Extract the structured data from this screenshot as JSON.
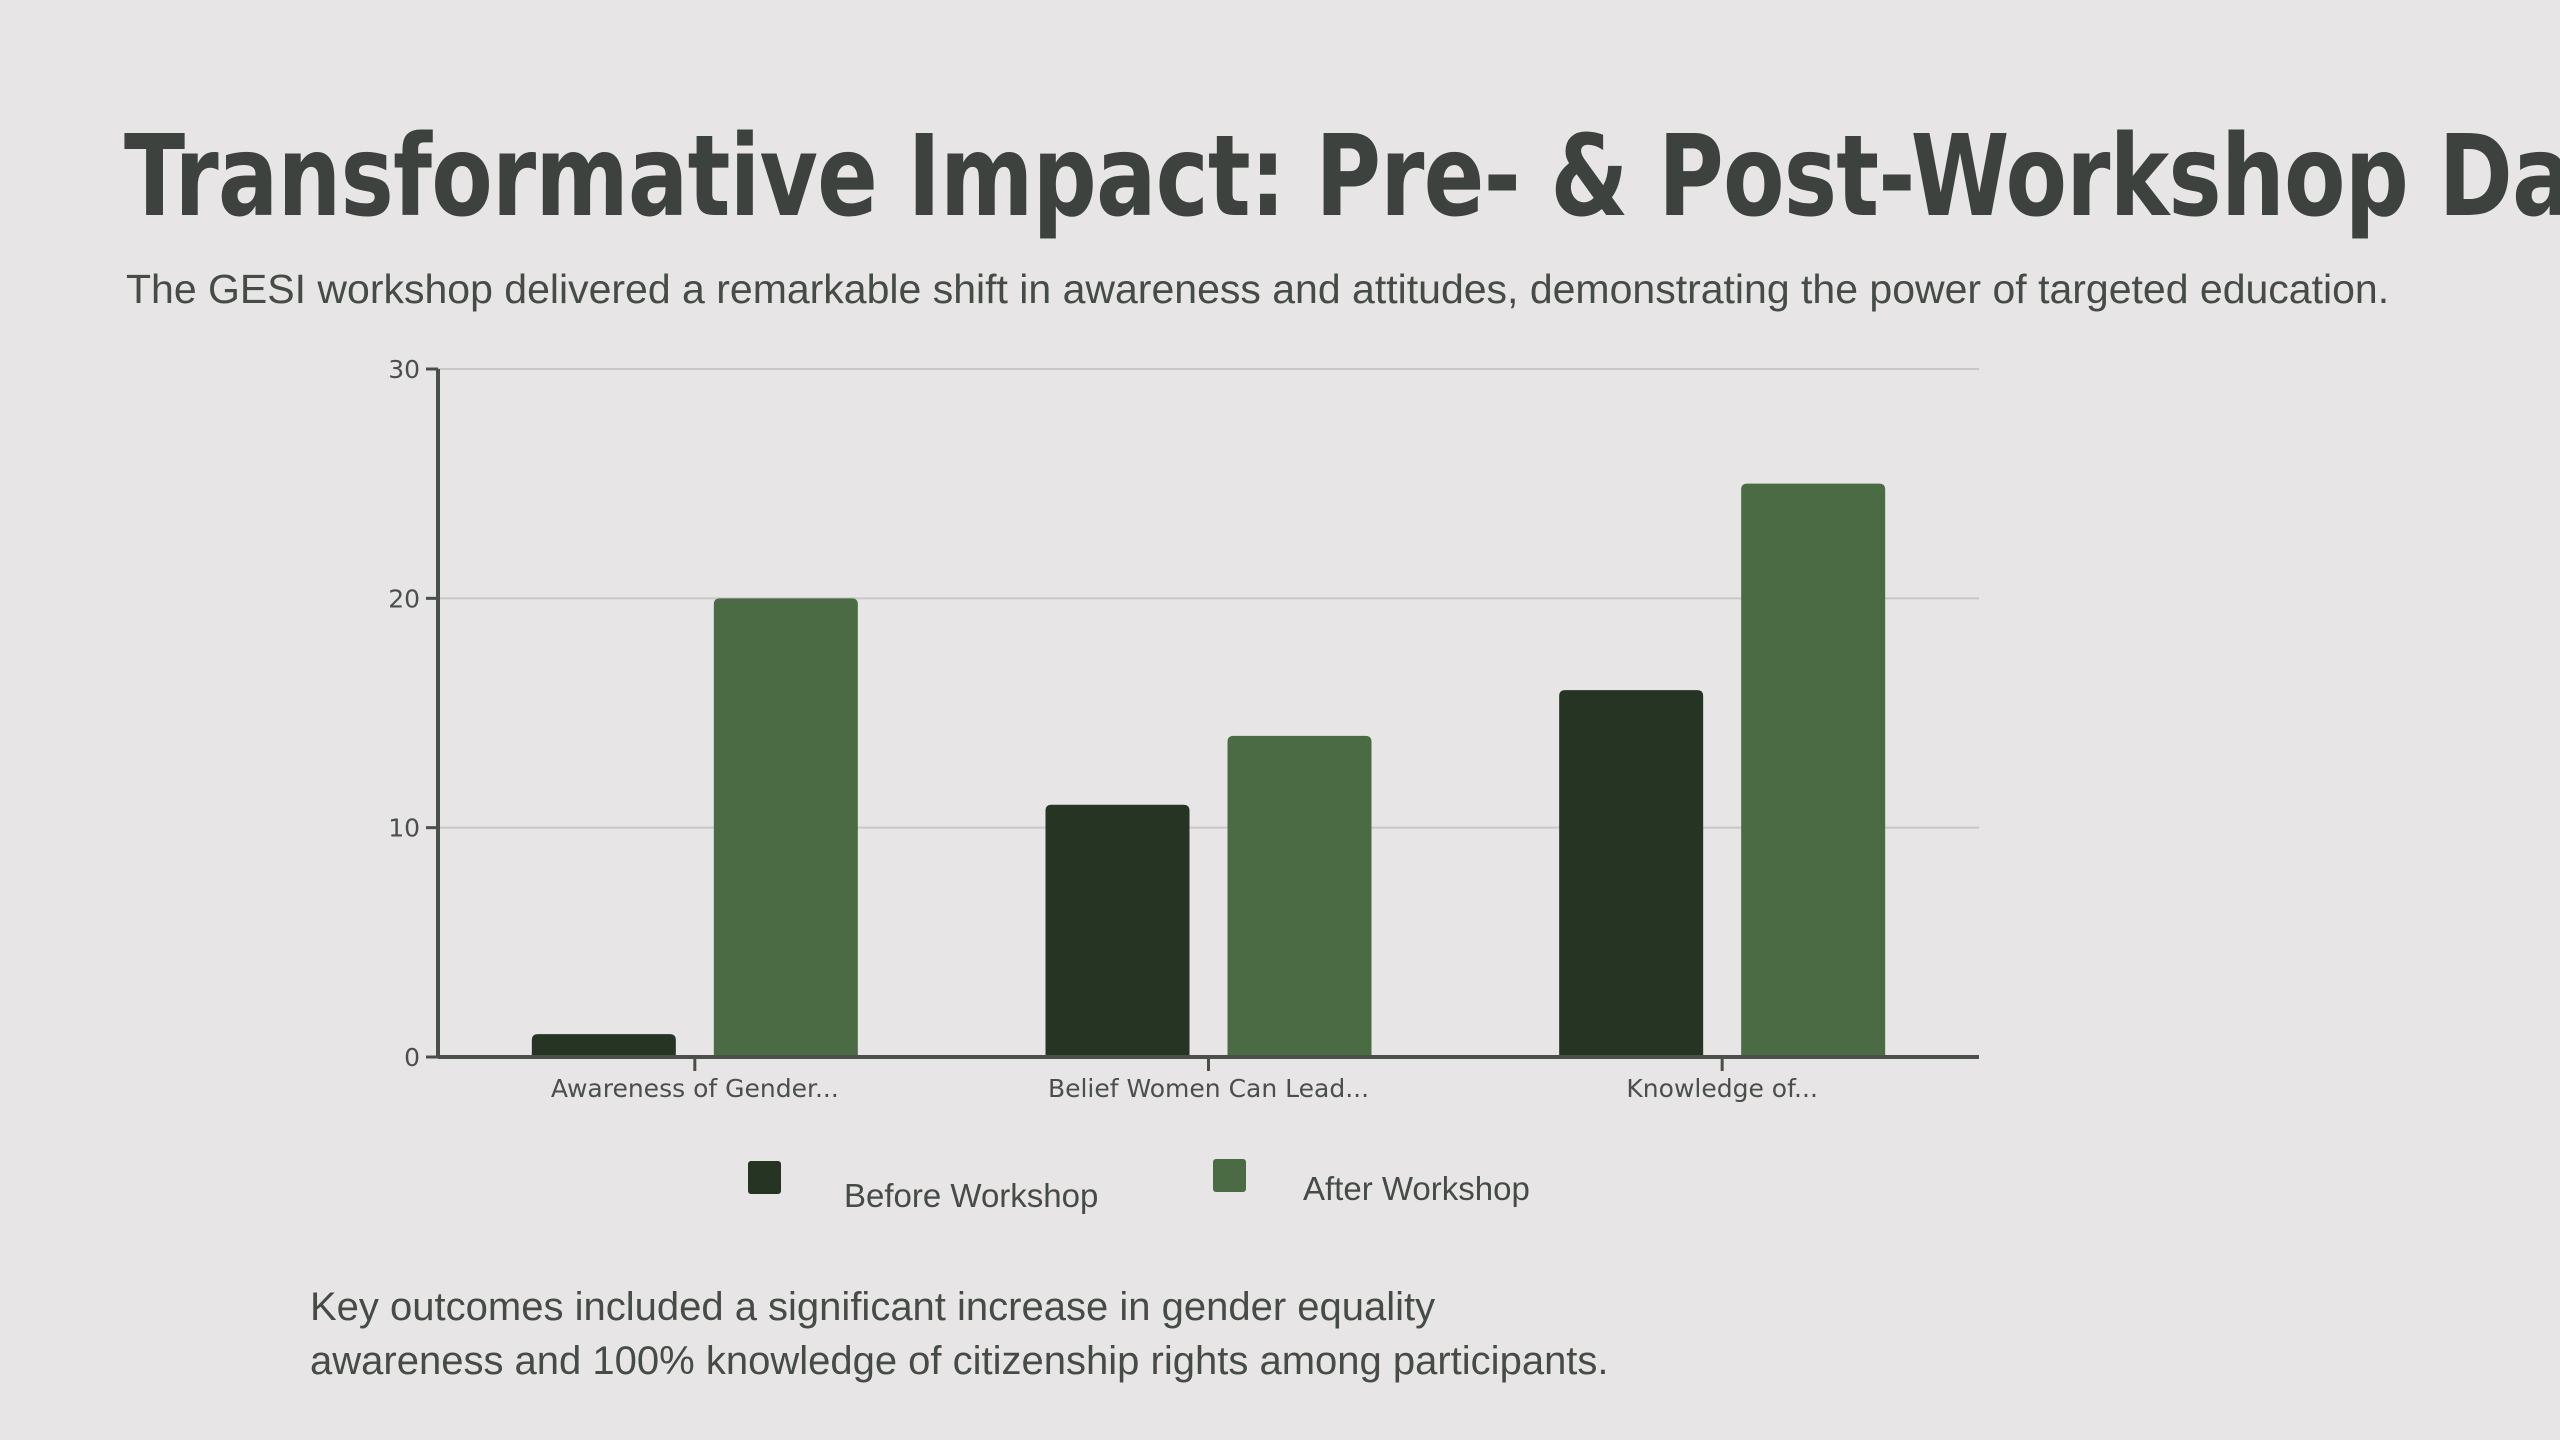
{
  "slide": {
    "title": "Transformative Impact: Pre- & Post-Workshop Data",
    "subtitle": "The GESI workshop delivered a remarkable shift in awareness and attitudes, demonstrating the power of targeted education.",
    "note_line1": "Key outcomes included a significant increase in gender equality",
    "note_line2": "awareness and 100% knowledge of citizenship rights among participants."
  },
  "colors": {
    "background": "#e7e5e6",
    "before": "#263423",
    "after": "#4a6b43",
    "grid": "#c8c8c8",
    "axis": "#4a4f4a"
  },
  "chart_data": {
    "type": "bar",
    "categories": [
      "Awareness of Gender...",
      "Belief Women Can Lead...",
      "Knowledge of..."
    ],
    "series": [
      {
        "name": "Before Workshop",
        "values": [
          1,
          11,
          16
        ],
        "color": "#263423"
      },
      {
        "name": "After Workshop",
        "values": [
          20,
          14,
          25
        ],
        "color": "#4a6b43"
      }
    ],
    "yticks": [
      0,
      10,
      20,
      30
    ],
    "ylim": [
      0,
      30
    ],
    "grid": true,
    "legend": "bottom"
  }
}
